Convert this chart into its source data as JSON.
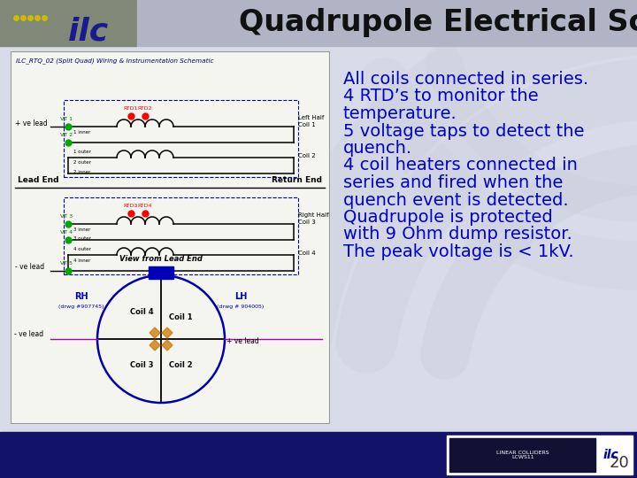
{
  "title": "Quadrupole Electrical Scheme",
  "title_fontsize": 24,
  "title_color": "#111111",
  "title_fontweight": "bold",
  "slide_bg": "#d8dce8",
  "header_bg_left": "#7a8870",
  "header_bg_right": "#b8bcc8",
  "text_lines": [
    "All coils connected in series.",
    "4 RTD’s to monitor the",
    "temperature.",
    "5 voltage taps to detect the",
    "quench.",
    "4 coil heaters connected in",
    "series and fired when the",
    "quench event is detected.",
    "Quadrupole is protected",
    "with 9 Ohm dump resistor.",
    "The peak voltage is < 1kV."
  ],
  "text_color": "#0000cc",
  "text_fontsize": 14,
  "page_number": "20"
}
